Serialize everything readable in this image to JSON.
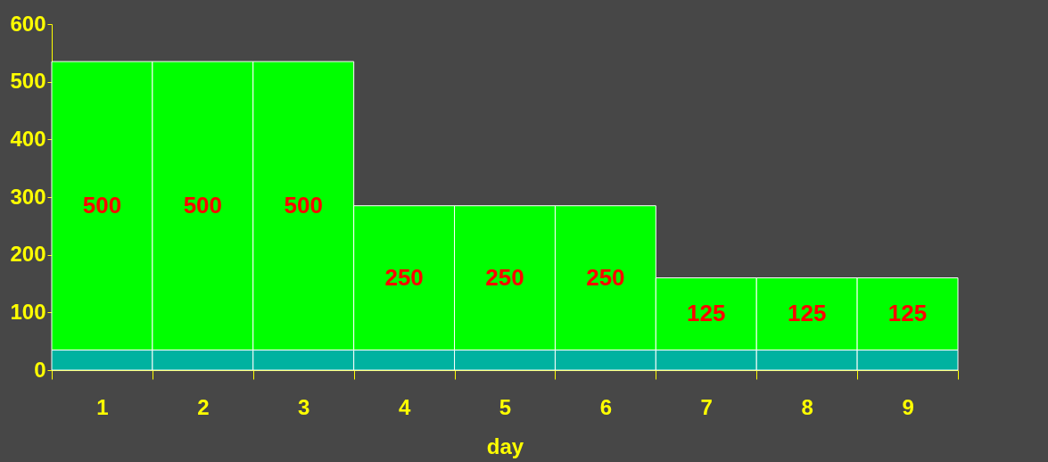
{
  "chart_data": {
    "type": "bar",
    "xlabel": "day",
    "categories": [
      "1",
      "2",
      "3",
      "4",
      "5",
      "6",
      "7",
      "8",
      "9"
    ],
    "stacked": true,
    "series": [
      {
        "color": "#00b2a0",
        "values": [
          35,
          35,
          35,
          35,
          35,
          35,
          35,
          35,
          35
        ]
      },
      {
        "color": "#00ff00",
        "values": [
          500,
          500,
          500,
          250,
          250,
          250,
          125,
          125,
          125
        ],
        "value_labels": [
          "500",
          "500",
          "500",
          "250",
          "250",
          "250",
          "125",
          "125",
          "125"
        ]
      }
    ],
    "ylim": [
      0,
      600
    ],
    "yticks": [
      0,
      100,
      200,
      300,
      400,
      500,
      600
    ],
    "grid": false
  }
}
